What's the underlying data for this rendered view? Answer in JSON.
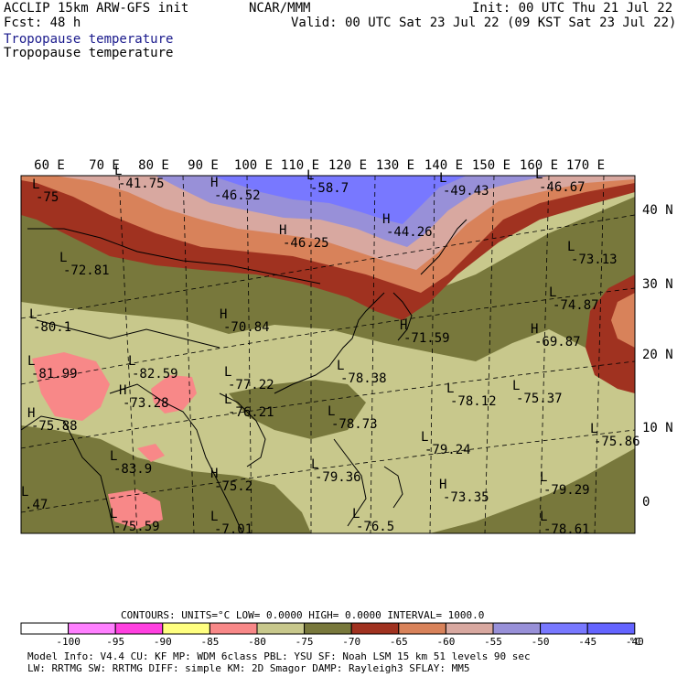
{
  "header": {
    "model_line": "ACCLIP 15km ARW-GFS init",
    "forecast_line": "Fcst:   48 h",
    "center_line": "NCAR/MMM",
    "init_line": "Init: 00 UTC Thu 21 Jul 22",
    "valid_line": "Valid: 00 UTC Sat 23 Jul 22 (09 KST Sat 23 Jul 22)",
    "field_line_1": "Tropopause temperature",
    "field_line_2": "Tropopause temperature"
  },
  "map": {
    "lon_labels": [
      "60 E",
      "70 E",
      "80 E",
      "90 E",
      "100 E",
      "110 E",
      "120 E",
      "130 E",
      "140 E",
      "150 E",
      "160 E",
      "170 E"
    ],
    "lat_labels": [
      "40 N",
      "30 N",
      "20 N",
      "10 N",
      "0"
    ],
    "colors": {
      "c_m100": "#ffffff",
      "c_m95": "#ff80ff",
      "c_m90": "#ff40e0",
      "c_m85": "#ffff80",
      "c_m80": "#f88888",
      "c_m75": "#c8c88c",
      "c_m70": "#78783c",
      "c_m65": "#a03220",
      "c_m60": "#d8825a",
      "c_m55": "#d8a8a0",
      "c_m50": "#9890d8",
      "c_m45": "#7878ff",
      "c_m40": "#6464ff",
      "coast": "#000000"
    },
    "extrema": [
      {
        "sym": "L",
        "val": "-75"
      },
      {
        "sym": "L",
        "val": "-41.75"
      },
      {
        "sym": "H",
        "val": "-46.52"
      },
      {
        "sym": "L",
        "val": "-58.7"
      },
      {
        "sym": "L",
        "val": "-49.43"
      },
      {
        "sym": "L",
        "val": "-46.67"
      },
      {
        "sym": "H",
        "val": "-44.26"
      },
      {
        "sym": "H",
        "val": "-46.25"
      },
      {
        "sym": "L",
        "val": "-72.81"
      },
      {
        "sym": "L",
        "val": "-73.13"
      },
      {
        "sym": "L",
        "val": "-74.87"
      },
      {
        "sym": "L",
        "val": "-80.1"
      },
      {
        "sym": "H",
        "val": "-70.84"
      },
      {
        "sym": "H",
        "val": "-71.59"
      },
      {
        "sym": "H",
        "val": "-69.87"
      },
      {
        "sym": "L",
        "val": "-81.99"
      },
      {
        "sym": "L",
        "val": "-82.59"
      },
      {
        "sym": "L",
        "val": "-77.22"
      },
      {
        "sym": "L",
        "val": "-78.38"
      },
      {
        "sym": "L",
        "val": "-78.12"
      },
      {
        "sym": "L",
        "val": "-75.37"
      },
      {
        "sym": "H",
        "val": "-75.88"
      },
      {
        "sym": "H",
        "val": "-73.28"
      },
      {
        "sym": "L",
        "val": "-76.21"
      },
      {
        "sym": "L",
        "val": "-78.73"
      },
      {
        "sym": "L",
        "val": "-79.24"
      },
      {
        "sym": "L",
        "val": "-75.86"
      },
      {
        "sym": "L",
        "val": "-83.9"
      },
      {
        "sym": "L",
        "val": "-79.36"
      },
      {
        "sym": "H",
        "val": "-75.2"
      },
      {
        "sym": "H",
        "val": "-73.35"
      },
      {
        "sym": "L",
        "val": "-79.29"
      },
      {
        "sym": "L",
        "val": ".47"
      },
      {
        "sym": "L",
        "val": "-75.59"
      },
      {
        "sym": "L",
        "val": "-7.01"
      },
      {
        "sym": "L",
        "val": "-76.5"
      },
      {
        "sym": "L",
        "val": "-78.61"
      }
    ]
  },
  "footer": {
    "contours_line": "CONTOURS:  UNITS=°C  LOW=  0.0000       HIGH=  0.0000       INTERVAL=    1000.0",
    "colorbar_labels": [
      "-100",
      "-95",
      "-90",
      "-85",
      "-80",
      "-75",
      "-70",
      "-65",
      "-60",
      "-55",
      "-50",
      "-45",
      "-40"
    ],
    "units_label": "°C",
    "model_info_1": "Model Info: V4.4       CU: KF       MP: WDM 6class  PBL: YSU       SF: Noah LSM     15 km    51 levels   90 sec",
    "model_info_2": "                       LW: RRTMG     SW: RRTMG   DIFF: simple KM: 2D Smagor DAMP: Rayleigh3  SFLAY: MM5"
  }
}
